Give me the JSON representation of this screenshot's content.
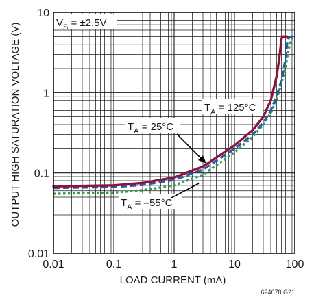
{
  "chart_data": {
    "type": "line",
    "xlabel": "LOAD CURRENT (mA)",
    "ylabel": "OUTPUT HIGH SATURATION VOLTAGE (V)",
    "xscale": "log",
    "yscale": "log",
    "xlim": [
      0.01,
      100
    ],
    "ylim": [
      0.01,
      10
    ],
    "grid": true,
    "x_tick_labels": [
      "0.01",
      "0.1",
      "1",
      "10",
      "100"
    ],
    "y_tick_labels": [
      "0.01",
      "0.1",
      "1",
      "10"
    ],
    "series": [
      {
        "name": "T_A = 125°C",
        "color": "#8b1538",
        "style": "solid",
        "x": [
          0.01,
          0.1,
          0.3,
          1,
          3,
          10,
          20,
          30,
          40,
          50,
          55,
          60,
          62,
          65,
          70,
          75
        ],
        "y": [
          0.068,
          0.07,
          0.075,
          0.088,
          0.12,
          0.22,
          0.34,
          0.5,
          0.8,
          1.6,
          2.6,
          4.6,
          5,
          5,
          5,
          5
        ]
      },
      {
        "name": "T_A = 25°C",
        "color": "#2b5ba8",
        "style": "dashed",
        "x": [
          0.01,
          0.1,
          0.3,
          1,
          3,
          10,
          20,
          30,
          40,
          50,
          60,
          70,
          75,
          80,
          90,
          100
        ],
        "y": [
          0.065,
          0.067,
          0.071,
          0.082,
          0.11,
          0.2,
          0.3,
          0.42,
          0.6,
          0.9,
          1.4,
          2.6,
          4.2,
          4.9,
          5,
          5
        ]
      },
      {
        "name": "T_A = –55°C",
        "color": "#3a9a50",
        "style": "dotted",
        "x": [
          0.01,
          0.1,
          0.3,
          1,
          3,
          10,
          20,
          30,
          40,
          50,
          60,
          70,
          80,
          90,
          100
        ],
        "y": [
          0.055,
          0.057,
          0.061,
          0.07,
          0.095,
          0.18,
          0.28,
          0.4,
          0.56,
          0.82,
          1.3,
          2.1,
          3.6,
          4.8,
          5
        ]
      }
    ],
    "annotations": [
      {
        "main": "V",
        "sub": "S",
        "rest": " = ±2.5V"
      },
      {
        "main": "T",
        "sub": "A",
        "rest": " = 125°C"
      },
      {
        "main": "T",
        "sub": "A",
        "rest": " = 25°C"
      },
      {
        "main": "T",
        "sub": "A",
        "rest": " = –55°C"
      }
    ],
    "figure_id": "624678 G21"
  },
  "colors": {
    "grid": "#1a1a1a",
    "frame": "#000000",
    "label_bg": "#ffffff"
  }
}
